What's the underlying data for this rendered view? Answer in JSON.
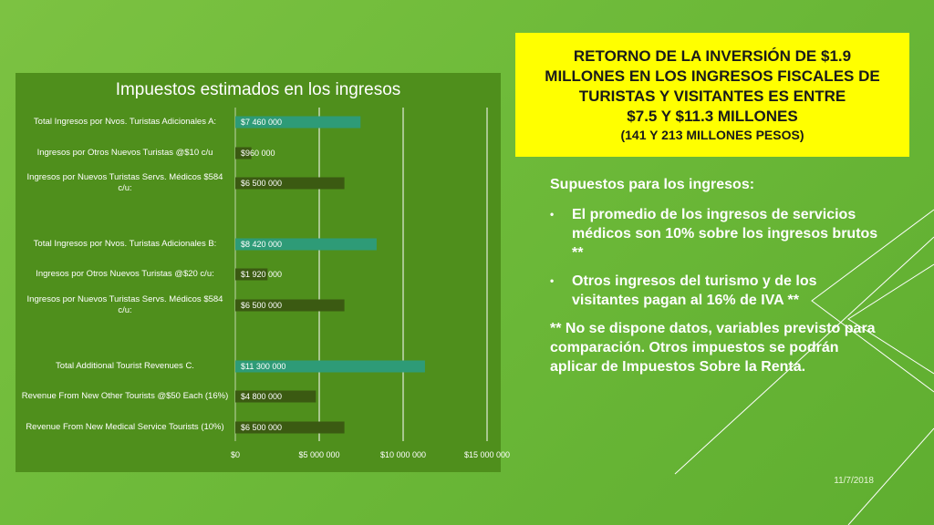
{
  "heading": {
    "lines": [
      "RETORNO DE LA INVERSIÓN DE $1.9",
      "MILLONES EN LOS INGRESOS FISCALES DE",
      "TURISTAS Y VISITANTES ES ENTRE",
      "$7.5 Y $11.3 MILLONES"
    ],
    "sub": "(141 Y 213 MILLONES PESOS)"
  },
  "assumptions": {
    "title": "Supuestos para los ingresos:",
    "bullet_char": "•",
    "bullets": [
      "El promedio de los ingresos de servicios médicos son 10% sobre los ingresos brutos **",
      "Otros ingresos del turismo y de los visitantes pagan al 16% de IVA **"
    ],
    "note": "** No se dispone datos, variables previsto para comparación. Otros impuestos se podrán aplicar de Impuestos Sobre la Renta."
  },
  "date": "11/7/2018",
  "colors": {
    "background": "#6fbb3a",
    "panel": "#4f8f1c",
    "bar_total": "#2e9b77",
    "bar_dark": "#3b5a12",
    "heading_bg": "#ffff00"
  },
  "chart_data": {
    "type": "bar",
    "orientation": "horizontal",
    "title": "Impuestos estimados en los ingresos",
    "categories": [
      "Total Ingresos por Nvos. Turistas Adicionales A:",
      "Ingresos por Otros Nuevos Turistas @$10 c/u",
      "Ingresos por Nuevos Turistas Servs. Médicos $584 c/u:",
      "Total Ingresos por Nvos. Turistas Adicionales B:",
      "Ingresos por Otros Nuevos Turistas @$20 c/u:",
      "Ingresos por Nuevos Turistas Servs. Médicos $584 c/u:",
      "Total Additional Tourist Revenues C.",
      "Revenue From New Other Tourists @$50 Each (16%)",
      "Revenue From New Medical Service Tourists (10%)"
    ],
    "values": [
      7460000,
      960000,
      6500000,
      8420000,
      1920000,
      6500000,
      11300000,
      4800000,
      6500000
    ],
    "data_labels": [
      "$7 460 000",
      "$960 000",
      "$6 500 000",
      "$8 420 000",
      "$1 920 000",
      "$6 500 000",
      "$11 300 000",
      "$4 800 000",
      "$6 500 000"
    ],
    "is_total": [
      true,
      false,
      false,
      true,
      false,
      false,
      true,
      false,
      false
    ],
    "xlim": [
      0,
      15000000
    ],
    "xticks": [
      0,
      5000000,
      10000000,
      15000000
    ],
    "xtick_labels": [
      "$0",
      "$5 000 000",
      "$10 000 000",
      "$15 000 000"
    ],
    "grid": "vertical",
    "legend": "none"
  }
}
